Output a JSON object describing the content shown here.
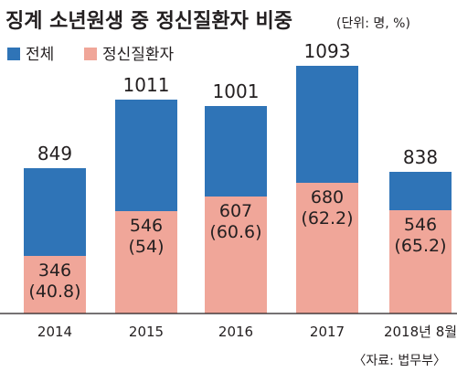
{
  "title": "징계 소년원생 중 정신질환자 비중",
  "unit": "(단위: 명, %)",
  "source": "〈자료: 법무부〉",
  "chart_data": {
    "type": "bar",
    "categories": [
      "2014",
      "2015",
      "2016",
      "2017",
      "2018년 8월"
    ],
    "series": [
      {
        "name": "전체",
        "color": "#2f74b7",
        "values": [
          849,
          1011,
          1001,
          1093,
          838
        ]
      },
      {
        "name": "정신질환자",
        "color": "#f0a699",
        "values": [
          346,
          546,
          607,
          680,
          546
        ],
        "percent": [
          40.8,
          54,
          60.6,
          62.2,
          65.2
        ]
      }
    ],
    "inner_labels": [
      [
        "346",
        "(40.8)"
      ],
      [
        "546",
        "(54)"
      ],
      [
        "607",
        "(60.6)"
      ],
      [
        "680",
        "(62.2)"
      ],
      [
        "546",
        "(65.2)"
      ]
    ],
    "grid": false,
    "legend_position": "top-left",
    "note": "bars are not drawn to a common scale"
  }
}
